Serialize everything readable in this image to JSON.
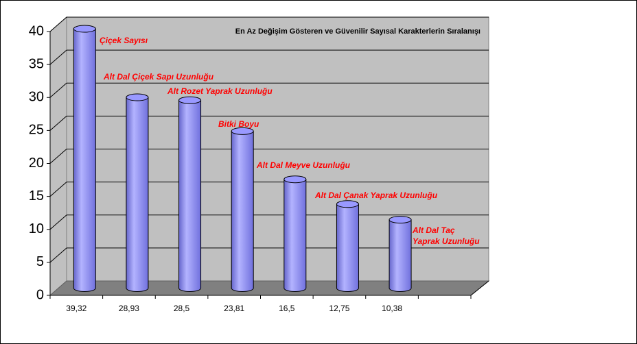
{
  "chart_data": {
    "type": "bar3d",
    "title": "En Az Değişim Gösteren ve Güvenilir Sayısal Karakterlerin Sıralanışı",
    "categories": [
      "39,32",
      "28,93",
      "28,5",
      "23,81",
      "16,5",
      "12,75",
      "10,38",
      null
    ],
    "values": [
      39.32,
      28.93,
      28.5,
      23.81,
      16.5,
      12.75,
      10.38,
      null
    ],
    "annotations": [
      [
        "Çiçek Sayısı"
      ],
      [
        "Alt Dal Çiçek Sapı Uzunluğu"
      ],
      [
        "Alt Rozet Yaprak  Uzunluğu"
      ],
      [
        "Bitki Boyu"
      ],
      [
        "Alt Dal Meyve Uzunluğu"
      ],
      [
        "Alt Dal Çanak  Yaprak  Uzunluğu"
      ],
      [
        "Alt Dal Taç",
        "Yaprak Uzunluğu"
      ]
    ],
    "color": "#9999ff",
    "ylim": [
      0,
      40
    ],
    "yticks": [
      0,
      5,
      10,
      15,
      20,
      25,
      30,
      35,
      40
    ],
    "grid": true
  }
}
